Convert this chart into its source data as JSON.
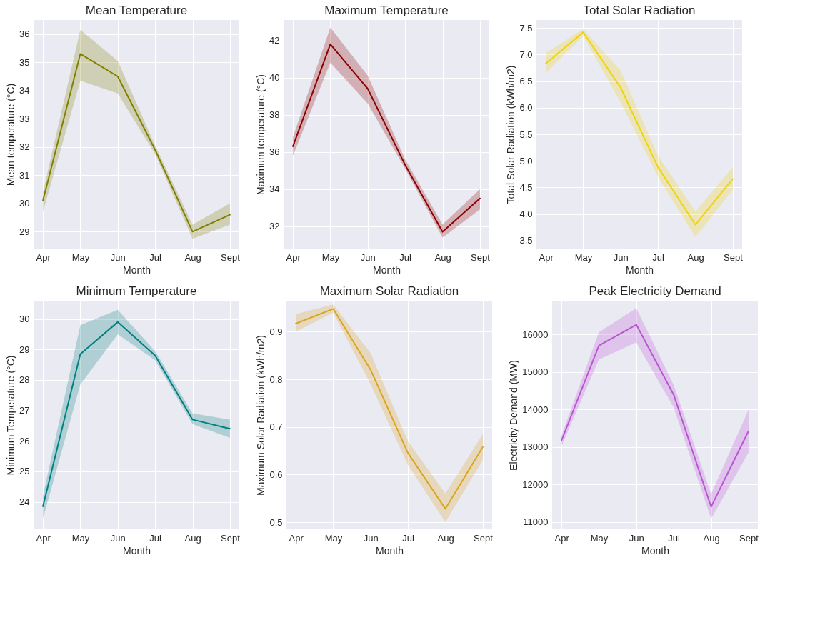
{
  "chart_data": [
    {
      "type": "line",
      "title": "Mean Temperature",
      "xlabel": "Month",
      "ylabel": "Mean temperature (°C)",
      "categories": [
        "Apr",
        "May",
        "Jun",
        "Jul",
        "Aug",
        "Sept"
      ],
      "ylim": [
        28.4,
        36.5
      ],
      "yticks": [
        29,
        30,
        31,
        32,
        33,
        34,
        35,
        36
      ],
      "grid": true,
      "series": [
        {
          "color": "#808000",
          "values": [
            30.1,
            35.3,
            34.5,
            31.9,
            29.0,
            29.6
          ],
          "lower": [
            29.7,
            34.35,
            33.9,
            31.75,
            28.75,
            29.25
          ],
          "upper": [
            30.4,
            36.15,
            35.05,
            32.05,
            29.25,
            30.0
          ]
        }
      ]
    },
    {
      "type": "line",
      "title": "Maximum Temperature",
      "xlabel": "Month",
      "ylabel": "Maximum temperature (°C)",
      "categories": [
        "Apr",
        "May",
        "Jun",
        "Jul",
        "Aug",
        "Sept"
      ],
      "ylim": [
        30.8,
        43.1
      ],
      "yticks": [
        32,
        34,
        36,
        38,
        40,
        42
      ],
      "grid": true,
      "series": [
        {
          "color": "#8b0000",
          "values": [
            36.3,
            41.8,
            39.4,
            35.3,
            31.7,
            33.5
          ],
          "lower": [
            35.8,
            40.8,
            38.6,
            35.1,
            31.4,
            32.9
          ],
          "upper": [
            36.8,
            42.7,
            40.1,
            35.6,
            32.1,
            34.0
          ]
        }
      ]
    },
    {
      "type": "line",
      "title": "Total Solar Radiation",
      "xlabel": "Month",
      "ylabel": "Total Solar Radiation (kWh/m2)",
      "categories": [
        "Apr",
        "May",
        "Jun",
        "Jul",
        "Aug",
        "Sept"
      ],
      "ylim": [
        3.35,
        7.65
      ],
      "yticks": [
        3.5,
        {
          "value": 4,
          "label": "4.0"
        },
        4.5,
        {
          "value": 5,
          "label": "5.0"
        },
        5.5,
        {
          "value": 6,
          "label": "6.0"
        },
        6.5,
        {
          "value": 7,
          "label": "7.0"
        },
        7.5
      ],
      "grid": true,
      "series": [
        {
          "color": "#f0d30f",
          "values": [
            6.83,
            7.42,
            6.38,
            4.88,
            3.8,
            4.66
          ],
          "lower": [
            6.65,
            7.35,
            6.1,
            4.7,
            3.57,
            4.45
          ],
          "upper": [
            7.03,
            7.48,
            6.7,
            5.1,
            4.05,
            4.88
          ]
        }
      ]
    },
    {
      "type": "line",
      "title": "Minimum Temperature",
      "xlabel": "Month",
      "ylabel": "Minimum Temperature (°C)",
      "categories": [
        "Apr",
        "May",
        "Jun",
        "Jul",
        "Aug",
        "Sept"
      ],
      "ylim": [
        23.1,
        30.6
      ],
      "yticks": [
        24,
        25,
        26,
        27,
        28,
        29,
        30
      ],
      "grid": true,
      "series": [
        {
          "color": "#008080",
          "values": [
            23.85,
            28.85,
            29.9,
            28.8,
            26.7,
            26.4
          ],
          "lower": [
            23.45,
            27.85,
            29.5,
            28.65,
            26.55,
            26.1
          ],
          "upper": [
            24.2,
            29.8,
            30.3,
            28.95,
            26.9,
            26.7
          ]
        }
      ]
    },
    {
      "type": "line",
      "title": "Maximum Solar Radiation",
      "xlabel": "Month",
      "ylabel": "Maximum Solar Radiation (kWh/m2)",
      "categories": [
        "Apr",
        "May",
        "Jun",
        "Jul",
        "Aug",
        "Sept"
      ],
      "ylim": [
        0.485,
        0.965
      ],
      "yticks": [
        0.5,
        0.6,
        0.7,
        0.8,
        0.9
      ],
      "grid": true,
      "series": [
        {
          "color": "#daa520",
          "values": [
            0.917,
            0.948,
            0.82,
            0.645,
            0.528,
            0.658
          ],
          "lower": [
            0.9,
            0.94,
            0.79,
            0.62,
            0.5,
            0.63
          ],
          "upper": [
            0.937,
            0.957,
            0.855,
            0.67,
            0.56,
            0.685
          ]
        }
      ]
    },
    {
      "type": "line",
      "title": "Peak Electricity Demand",
      "xlabel": "Month",
      "ylabel": "Electricity Demand (MW)",
      "categories": [
        "Apr",
        "May",
        "Jun",
        "Jul",
        "Aug",
        "Sept"
      ],
      "ylim": [
        10800,
        16900
      ],
      "yticks": [
        11000,
        12000,
        13000,
        14000,
        15000,
        16000
      ],
      "grid": true,
      "series": [
        {
          "color": "#ba55d3",
          "values": [
            13170,
            15700,
            16260,
            14390,
            11400,
            13420
          ],
          "lower": [
            13020,
            15330,
            15790,
            14050,
            11080,
            12850
          ],
          "upper": [
            13300,
            16060,
            16700,
            14650,
            11740,
            13990
          ]
        }
      ]
    }
  ]
}
